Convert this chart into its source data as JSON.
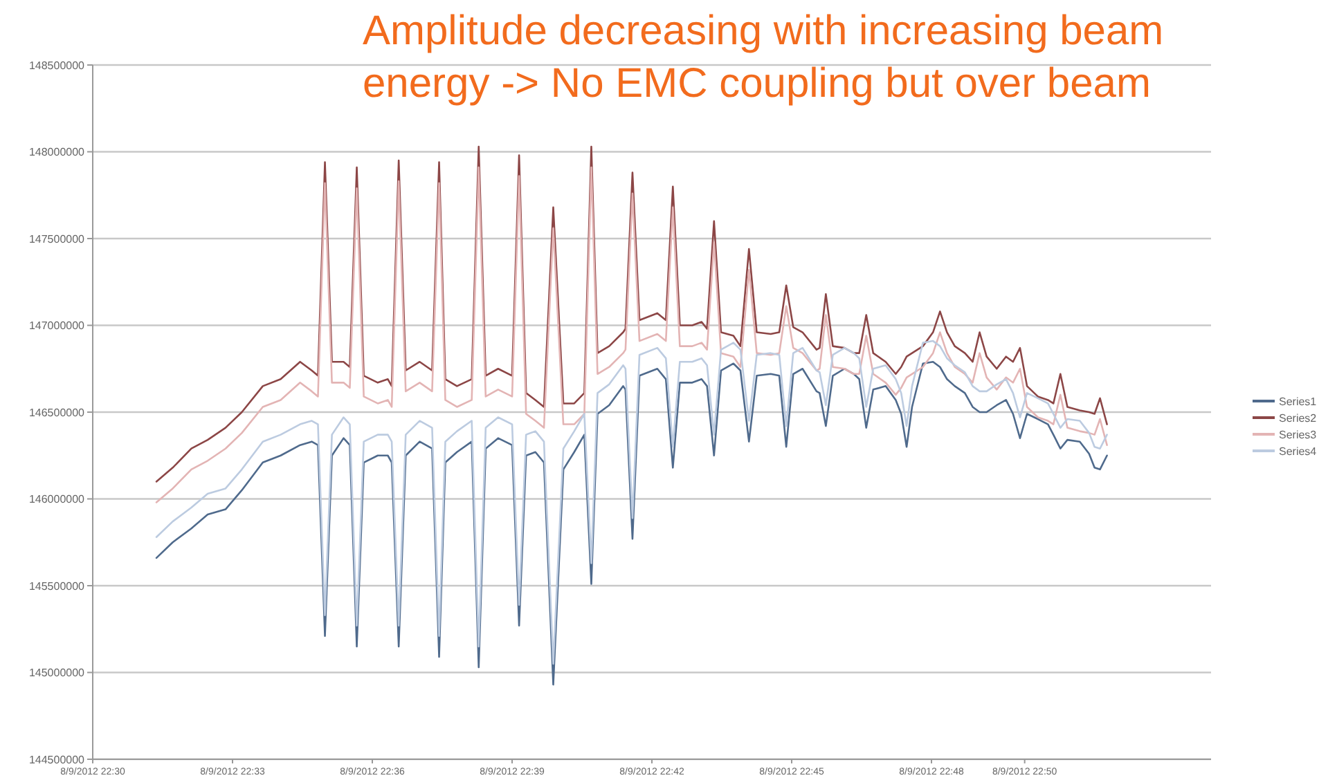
{
  "chart_data": {
    "type": "line",
    "title": "Amplitude decreasing with increasing beam energy -> No EMC coupling but over beam",
    "x": [
      "2012-08-09T22:31:22",
      "2012-08-09T22:31:43",
      "2012-08-09T22:32:07",
      "2012-08-09T22:32:28",
      "2012-08-09T22:32:51",
      "2012-08-09T22:33:12",
      "2012-08-09T22:33:39",
      "2012-08-09T22:34:02",
      "2012-08-09T22:34:27",
      "2012-08-09T22:34:42",
      "2012-08-09T22:34:50",
      "2012-08-09T22:34:59",
      "2012-08-09T22:35:08",
      "2012-08-09T22:35:23",
      "2012-08-09T22:35:31",
      "2012-08-09T22:35:40",
      "2012-08-09T22:35:49",
      "2012-08-09T22:36:07",
      "2012-08-09T22:36:20",
      "2012-08-09T22:36:25",
      "2012-08-09T22:36:34",
      "2012-08-09T22:36:43",
      "2012-08-09T22:37:01",
      "2012-08-09T22:37:17",
      "2012-08-09T22:37:26",
      "2012-08-09T22:37:34",
      "2012-08-09T22:37:49",
      "2012-08-09T22:38:08",
      "2012-08-09T22:38:17",
      "2012-08-09T22:38:26",
      "2012-08-09T22:38:42",
      "2012-08-09T22:39:00",
      "2012-08-09T22:39:09",
      "2012-08-09T22:39:18",
      "2012-08-09T22:39:30",
      "2012-08-09T22:39:41",
      "2012-08-09T22:39:53",
      "2012-08-09T22:40:06",
      "2012-08-09T22:40:20",
      "2012-08-09T22:40:33",
      "2012-08-09T22:40:42",
      "2012-08-09T22:40:50",
      "2012-08-09T22:41:05",
      "2012-08-09T22:41:23",
      "2012-08-09T22:41:26",
      "2012-08-09T22:41:35",
      "2012-08-09T22:41:44",
      "2012-08-09T22:42:07",
      "2012-08-09T22:42:18",
      "2012-08-09T22:42:27",
      "2012-08-09T22:42:36",
      "2012-08-09T22:42:52",
      "2012-08-09T22:43:04",
      "2012-08-09T22:43:11",
      "2012-08-09T22:43:20",
      "2012-08-09T22:43:29",
      "2012-08-09T22:43:45",
      "2012-08-09T22:43:54",
      "2012-08-09T22:44:05",
      "2012-08-09T22:44:15",
      "2012-08-09T22:44:33",
      "2012-08-09T22:44:44",
      "2012-08-09T22:44:53",
      "2012-08-09T22:45:02",
      "2012-08-09T22:45:14",
      "2012-08-09T22:45:32",
      "2012-08-09T22:45:36",
      "2012-08-09T22:45:44",
      "2012-08-09T22:45:53",
      "2012-08-09T22:46:08",
      "2012-08-09T22:46:20",
      "2012-08-09T22:46:27",
      "2012-08-09T22:46:36",
      "2012-08-09T22:46:45",
      "2012-08-09T22:47:01",
      "2012-08-09T22:47:14",
      "2012-08-09T22:47:21",
      "2012-08-09T22:47:28",
      "2012-08-09T22:47:35",
      "2012-08-09T22:47:49",
      "2012-08-09T22:48:02",
      "2012-08-09T22:48:11",
      "2012-08-09T22:48:20",
      "2012-08-09T22:48:30",
      "2012-08-09T22:48:43",
      "2012-08-09T22:48:53",
      "2012-08-09T22:49:02",
      "2012-08-09T22:49:11",
      "2012-08-09T22:49:24",
      "2012-08-09T22:49:36",
      "2012-08-09T22:49:45",
      "2012-08-09T22:49:54",
      "2012-08-09T22:50:03",
      "2012-08-09T22:50:17",
      "2012-08-09T22:50:30",
      "2012-08-09T22:50:37",
      "2012-08-09T22:50:46",
      "2012-08-09T22:50:55",
      "2012-08-09T22:51:11",
      "2012-08-09T22:51:23",
      "2012-08-09T22:51:30",
      "2012-08-09T22:51:37",
      "2012-08-09T22:51:46"
    ],
    "xlim": [
      "2012-08-09T22:30",
      "2012-08-09T22:54"
    ],
    "xticks": [
      {
        "value": "2012-08-09T22:30",
        "label": "8/9/2012 22:30"
      },
      {
        "value": "2012-08-09T22:33",
        "label": "8/9/2012 22:33"
      },
      {
        "value": "2012-08-09T22:36",
        "label": "8/9/2012 22:36"
      },
      {
        "value": "2012-08-09T22:39",
        "label": "8/9/2012 22:39"
      },
      {
        "value": "2012-08-09T22:42",
        "label": "8/9/2012 22:42"
      },
      {
        "value": "2012-08-09T22:45",
        "label": "8/9/2012 22:45"
      },
      {
        "value": "2012-08-09T22:48",
        "label": "8/9/2012 22:48"
      },
      {
        "value": "2012-08-09T22:50",
        "label": "8/9/2012 22:50"
      }
    ],
    "ylim": [
      144500000,
      148500000
    ],
    "yticks": [
      144500000,
      145000000,
      145500000,
      146000000,
      146500000,
      147000000,
      147500000,
      148000000,
      148500000
    ],
    "grid": "y",
    "legend": "right",
    "series": [
      {
        "name": "Series1",
        "color": "#4f6a8c",
        "values": [
          145660000.0,
          145750000.0,
          145830000.0,
          145910000.0,
          145940000.0,
          146050000.0,
          146210000.0,
          146250000.0,
          146310000.0,
          146330000.0,
          146310000.0,
          145210000.0,
          146250000.0,
          146350000.0,
          146310000.0,
          145150000.0,
          146210000.0,
          146250000.0,
          146250000.0,
          146210000.0,
          145150000.0,
          146250000.0,
          146330000.0,
          146290000.0,
          145090000.0,
          146210000.0,
          146270000.0,
          146330000.0,
          145030000.0,
          146290000.0,
          146350000.0,
          146310000.0,
          145270000.0,
          146250000.0,
          146270000.0,
          146210000.0,
          144930000.0,
          146170000.0,
          146270000.0,
          146370000.0,
          145510000.0,
          146490000.0,
          146540000.0,
          146650000.0,
          146630000.0,
          145770000.0,
          146710000.0,
          146750000.0,
          146690000.0,
          146180000.0,
          146670000.0,
          146670000.0,
          146690000.0,
          146650000.0,
          146250000.0,
          146740000.0,
          146780000.0,
          146740000.0,
          146330000.0,
          146710000.0,
          146720000.0,
          146710000.0,
          146300000.0,
          146720000.0,
          146750000.0,
          146620000.0,
          146610000.0,
          146420000.0,
          146710000.0,
          146750000.0,
          146720000.0,
          146690000.0,
          146410000.0,
          146630000.0,
          146650000.0,
          146570000.0,
          146490000.0,
          146300000.0,
          146530000.0,
          146780000.0,
          146790000.0,
          146760000.0,
          146690000.0,
          146650000.0,
          146610000.0,
          146530000.0,
          146500000.0,
          146500000.0,
          146540000.0,
          146570000.0,
          146490000.0,
          146350000.0,
          146490000.0,
          146460000.0,
          146430000.0,
          146370000.0,
          146290000.0,
          146340000.0,
          146330000.0,
          146260000.0,
          146180000.0,
          146170000.0,
          146250000.0
        ]
      },
      {
        "name": "Series2",
        "color": "#8c4646",
        "values": [
          146100000.0,
          146180000.0,
          146290000.0,
          146340000.0,
          146410000.0,
          146500000.0,
          146650000.0,
          146690000.0,
          146790000.0,
          146740000.0,
          146710000.0,
          147940000.0,
          146790000.0,
          146790000.0,
          146760000.0,
          147910000.0,
          146710000.0,
          146670000.0,
          146690000.0,
          146650000.0,
          147950000.0,
          146740000.0,
          146790000.0,
          146740000.0,
          147940000.0,
          146690000.0,
          146650000.0,
          146690000.0,
          148030000.0,
          146710000.0,
          146750000.0,
          146710000.0,
          147980000.0,
          146610000.0,
          146570000.0,
          146530000.0,
          147680000.0,
          146550000.0,
          146550000.0,
          146610000.0,
          148030000.0,
          146840000.0,
          146880000.0,
          146960000.0,
          146980000.0,
          147880000.0,
          147030000.0,
          147070000.0,
          147030000.0,
          147800000.0,
          147000000.0,
          147000000.0,
          147020000.0,
          146980000.0,
          147600000.0,
          146960000.0,
          146940000.0,
          146880000.0,
          147440000.0,
          146960000.0,
          146950000.0,
          146960000.0,
          147230000.0,
          146990000.0,
          146960000.0,
          146860000.0,
          146870000.0,
          147180000.0,
          146880000.0,
          146870000.0,
          146840000.0,
          146840000.0,
          147060000.0,
          146840000.0,
          146790000.0,
          146720000.0,
          146760000.0,
          146820000.0,
          146840000.0,
          146880000.0,
          146960000.0,
          147080000.0,
          146960000.0,
          146880000.0,
          146840000.0,
          146790000.0,
          146960000.0,
          146820000.0,
          146750000.0,
          146820000.0,
          146790000.0,
          146870000.0,
          146650000.0,
          146590000.0,
          146570000.0,
          146550000.0,
          146720000.0,
          146530000.0,
          146510000.0,
          146500000.0,
          146490000.0,
          146580000.0,
          146430000.0
        ]
      },
      {
        "name": "Series3",
        "color": "#e3b4b4",
        "values": [
          145980000.0,
          146060000.0,
          146170000.0,
          146220000.0,
          146290000.0,
          146380000.0,
          146530000.0,
          146570000.0,
          146670000.0,
          146620000.0,
          146590000.0,
          147820000.0,
          146670000.0,
          146670000.0,
          146640000.0,
          147790000.0,
          146590000.0,
          146550000.0,
          146570000.0,
          146530000.0,
          147830000.0,
          146620000.0,
          146670000.0,
          146620000.0,
          147820000.0,
          146570000.0,
          146530000.0,
          146570000.0,
          147910000.0,
          146590000.0,
          146630000.0,
          146590000.0,
          147860000.0,
          146490000.0,
          146450000.0,
          146410000.0,
          147560000.0,
          146430000.0,
          146430000.0,
          146490000.0,
          147910000.0,
          146720000.0,
          146760000.0,
          146840000.0,
          146860000.0,
          147760000.0,
          146910000.0,
          146950000.0,
          146910000.0,
          147680000.0,
          146880000.0,
          146880000.0,
          146900000.0,
          146860000.0,
          147480000.0,
          146840000.0,
          146820000.0,
          146760000.0,
          147320000.0,
          146840000.0,
          146830000.0,
          146840000.0,
          147110000.0,
          146870000.0,
          146840000.0,
          146740000.0,
          146750000.0,
          147060000.0,
          146760000.0,
          146750000.0,
          146720000.0,
          146720000.0,
          146940000.0,
          146720000.0,
          146670000.0,
          146600000.0,
          146640000.0,
          146700000.0,
          146720000.0,
          146760000.0,
          146840000.0,
          146960000.0,
          146840000.0,
          146760000.0,
          146720000.0,
          146670000.0,
          146840000.0,
          146700000.0,
          146630000.0,
          146700000.0,
          146670000.0,
          146750000.0,
          146530000.0,
          146470000.0,
          146450000.0,
          146430000.0,
          146600000.0,
          146410000.0,
          146390000.0,
          146380000.0,
          146370000.0,
          146460000.0,
          146310000.0
        ]
      },
      {
        "name": "Series4",
        "color": "#bccbe0",
        "values": [
          145780000.0,
          145870000.0,
          145950000.0,
          146030000.0,
          146060000.0,
          146170000.0,
          146330000.0,
          146370000.0,
          146430000.0,
          146450000.0,
          146430000.0,
          145330000.0,
          146370000.0,
          146470000.0,
          146430000.0,
          145270000.0,
          146330000.0,
          146370000.0,
          146370000.0,
          146330000.0,
          145270000.0,
          146370000.0,
          146450000.0,
          146410000.0,
          145210000.0,
          146330000.0,
          146390000.0,
          146450000.0,
          145150000.0,
          146410000.0,
          146470000.0,
          146430000.0,
          145390000.0,
          146370000.0,
          146390000.0,
          146330000.0,
          145050000.0,
          146290000.0,
          146390000.0,
          146490000.0,
          145630000.0,
          146610000.0,
          146660000.0,
          146770000.0,
          146750000.0,
          145890000.0,
          146830000.0,
          146870000.0,
          146810000.0,
          146300000.0,
          146790000.0,
          146790000.0,
          146810000.0,
          146770000.0,
          146370000.0,
          146860000.0,
          146900000.0,
          146860000.0,
          146450000.0,
          146830000.0,
          146840000.0,
          146830000.0,
          146420000.0,
          146840000.0,
          146870000.0,
          146740000.0,
          146730000.0,
          146540000.0,
          146830000.0,
          146870000.0,
          146840000.0,
          146810000.0,
          146530000.0,
          146750000.0,
          146770000.0,
          146690000.0,
          146610000.0,
          146420000.0,
          146650000.0,
          146900000.0,
          146910000.0,
          146880000.0,
          146810000.0,
          146770000.0,
          146730000.0,
          146650000.0,
          146620000.0,
          146620000.0,
          146660000.0,
          146690000.0,
          146610000.0,
          146470000.0,
          146610000.0,
          146580000.0,
          146550000.0,
          146490000.0,
          146410000.0,
          146460000.0,
          146450000.0,
          146380000.0,
          146300000.0,
          146290000.0,
          146370000.0
        ]
      }
    ]
  }
}
